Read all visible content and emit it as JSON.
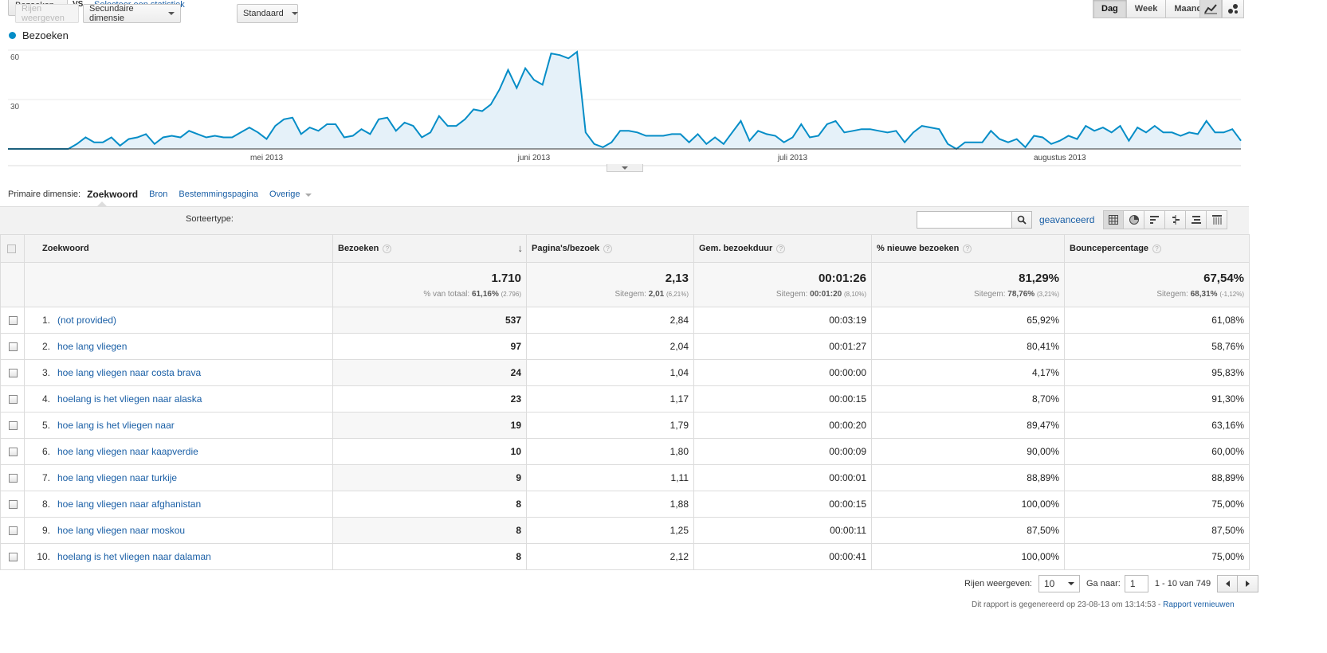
{
  "top": {
    "metric_label": "Bezoeken",
    "vs_label": "VS.",
    "select_stat_link": "Selecteer een statistiek",
    "periods": [
      "Dag",
      "Week",
      "Maand"
    ],
    "active_period": "Dag"
  },
  "chart": {
    "legend_label": "Bezoeken",
    "color": "#058dc7"
  },
  "chart_data": {
    "type": "area",
    "series": [
      {
        "name": "Bezoeken",
        "values": [
          0,
          0,
          0,
          0,
          0,
          0,
          0,
          0,
          3,
          7,
          4,
          4,
          7,
          2,
          6,
          7,
          9,
          3,
          7,
          8,
          7,
          11,
          9,
          7,
          8,
          7,
          7,
          10,
          13,
          10,
          6,
          14,
          18,
          19,
          9,
          13,
          11,
          15,
          15,
          7,
          8,
          12,
          9,
          18,
          19,
          11,
          16,
          14,
          7,
          10,
          20,
          14,
          14,
          18,
          24,
          23,
          27,
          36,
          48,
          37,
          49,
          42,
          39,
          58,
          57,
          55,
          59,
          10,
          3,
          1,
          4,
          11,
          11,
          10,
          8,
          8,
          8,
          9,
          9,
          4,
          9,
          3,
          7,
          3,
          10,
          17,
          5,
          11,
          9,
          8,
          4,
          7,
          15,
          7,
          8,
          15,
          17,
          10,
          11,
          12,
          12,
          11,
          10,
          11,
          4,
          10,
          14,
          13,
          12,
          3,
          0,
          4,
          4,
          4,
          11,
          6,
          4,
          6,
          1,
          8,
          7,
          3,
          5,
          8,
          6,
          14,
          11,
          13,
          10,
          14,
          5,
          13,
          10,
          14,
          10,
          10,
          8,
          10,
          9,
          17,
          10,
          10,
          12,
          5
        ]
      }
    ],
    "x_ticks": [
      "mei 2013",
      "juni 2013",
      "juli 2013",
      "augustus 2013"
    ],
    "y_ticks": [
      30,
      60
    ],
    "ylim": [
      0,
      60
    ],
    "grid": true
  },
  "dimensions": {
    "primary_label": "Primaire dimensie:",
    "active": "Zoekwoord",
    "links": [
      "Bron",
      "Bestemmingspagina"
    ],
    "other": "Overige"
  },
  "toolbar": {
    "show_rows": "Rijen weergeven",
    "secondary": "Secundaire dimensie",
    "sort_label": "Sorteertype:",
    "sort_value": "Standaard",
    "advanced": "geavanceerd",
    "search_placeholder": ""
  },
  "table": {
    "headers": {
      "keyword": "Zoekwoord",
      "visits": "Bezoeken",
      "pages": "Pagina's/bezoek",
      "duration": "Gem. bezoekduur",
      "new_visits": "% nieuwe bezoeken",
      "bounce": "Bouncepercentage",
      "help": "?"
    },
    "totals": {
      "visits": "1.710",
      "visits_sub_label": "% van totaal:",
      "visits_sub_value": "61,16%",
      "visits_sub_extra": "(2.796)",
      "pages": "2,13",
      "pages_sub_label": "Sitegem:",
      "pages_sub_value": "2,01",
      "pages_sub_extra": "(6,21%)",
      "duration": "00:01:26",
      "duration_sub_label": "Sitegem:",
      "duration_sub_value": "00:01:20",
      "duration_sub_extra": "(8,10%)",
      "new_visits": "81,29%",
      "new_visits_sub_label": "Sitegem:",
      "new_visits_sub_value": "78,76%",
      "new_visits_sub_extra": "(3,21%)",
      "bounce": "67,54%",
      "bounce_sub_label": "Sitegem:",
      "bounce_sub_value": "68,31%",
      "bounce_sub_extra": "(-1,12%)"
    },
    "rows": [
      {
        "n": "1.",
        "keyword": "(not provided)",
        "visits": "537",
        "pages": "2,84",
        "duration": "00:03:19",
        "new": "65,92%",
        "bounce": "61,08%"
      },
      {
        "n": "2.",
        "keyword": "hoe lang vliegen",
        "visits": "97",
        "pages": "2,04",
        "duration": "00:01:27",
        "new": "80,41%",
        "bounce": "58,76%"
      },
      {
        "n": "3.",
        "keyword": "hoe lang vliegen naar costa brava",
        "visits": "24",
        "pages": "1,04",
        "duration": "00:00:00",
        "new": "4,17%",
        "bounce": "95,83%"
      },
      {
        "n": "4.",
        "keyword": "hoelang is het vliegen naar alaska",
        "visits": "23",
        "pages": "1,17",
        "duration": "00:00:15",
        "new": "8,70%",
        "bounce": "91,30%"
      },
      {
        "n": "5.",
        "keyword": "hoe lang is het vliegen naar",
        "visits": "19",
        "pages": "1,79",
        "duration": "00:00:20",
        "new": "89,47%",
        "bounce": "63,16%"
      },
      {
        "n": "6.",
        "keyword": "hoe lang vliegen naar kaapverdie",
        "visits": "10",
        "pages": "1,80",
        "duration": "00:00:09",
        "new": "90,00%",
        "bounce": "60,00%"
      },
      {
        "n": "7.",
        "keyword": "hoe lang vliegen naar turkije",
        "visits": "9",
        "pages": "1,11",
        "duration": "00:00:01",
        "new": "88,89%",
        "bounce": "88,89%"
      },
      {
        "n": "8.",
        "keyword": "hoe lang vliegen naar afghanistan",
        "visits": "8",
        "pages": "1,88",
        "duration": "00:00:15",
        "new": "100,00%",
        "bounce": "75,00%"
      },
      {
        "n": "9.",
        "keyword": "hoe lang vliegen naar moskou",
        "visits": "8",
        "pages": "1,25",
        "duration": "00:00:11",
        "new": "87,50%",
        "bounce": "87,50%"
      },
      {
        "n": "10.",
        "keyword": "hoelang is het vliegen naar dalaman",
        "visits": "8",
        "pages": "2,12",
        "duration": "00:00:41",
        "new": "100,00%",
        "bounce": "75,00%"
      }
    ]
  },
  "pagination": {
    "rows_label": "Rijen weergeven:",
    "rows_value": "10",
    "goto_label": "Ga naar:",
    "goto_value": "1",
    "range": "1 - 10 van 749"
  },
  "footer": {
    "text": "Dit rapport is gegenereerd op 23-08-13 om 13:14:53 -",
    "refresh_link": "Rapport vernieuwen"
  }
}
